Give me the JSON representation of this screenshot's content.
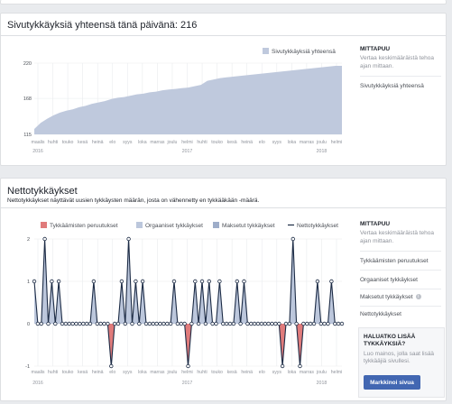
{
  "likes_card": {
    "title": "Sivutykkäyksiä yhteensä tänä päivänä: 216",
    "sidebar": {
      "heading": "MITTAPUU",
      "description": "Vertaa keskimääräistä tehoa ajan mittaan.",
      "metrics": [
        "Sivutykkäyksiä yhteensä"
      ]
    }
  },
  "net_card": {
    "title": "Nettotykkäykset",
    "description": "Nettotykkäykset näyttävät uusien tykkäysten määrän, josta on vähennetty en tykkääkään -määrä.",
    "sidebar": {
      "heading": "MITTAPUU",
      "description": "Vertaa keskimääräistä tehoa ajan mittaan.",
      "metrics": [
        "Tykkäämisten peruutukset",
        "Orgaaniset tykkäykset",
        "Maksetut tykkäykset",
        "Nettotykkäykset"
      ]
    },
    "promo": {
      "title": "HALUATKO LISÄÄ TYKKÄYKSIÄ?",
      "text": "Luo mainos, jolla saat lisää tykkääjiä sivullesi.",
      "button_label": "Markkinoi sivua"
    }
  },
  "colors": {
    "area_fill": "#bfc9dd",
    "unlike": "#e07b7b",
    "organic": "#bcc7dc",
    "paid": "#9eadc9",
    "net_line": "#1c2b45",
    "button": "#4267b2"
  },
  "icons": {
    "info": "info-icon"
  },
  "chart_data": [
    {
      "type": "area",
      "title": "",
      "legend": [
        "Sivutykkäyksiä yhteensä"
      ],
      "legend_position": "top-right",
      "ylim": [
        115,
        220
      ],
      "yticks": [
        115,
        168,
        220
      ],
      "grid": true,
      "x_tick_labels": [
        "maaliskuu",
        "huhtikuu",
        "toukokuu",
        "kesäkuu",
        "heinäkuu",
        "elokuu",
        "syyskuu",
        "lokakuu",
        "marraskuu",
        "joulukuu",
        "helmikuu",
        "huhtikuu",
        "toukokuu",
        "kesäkuu",
        "heinäkuu",
        "elokuu",
        "syyskuu",
        "lokakuu",
        "marraskuu",
        "joulukuu",
        "helmikuu"
      ],
      "x_tick_display": [
        "maalis",
        "huhti",
        "touko",
        "kesä",
        "heinä",
        "elo",
        "syys",
        "loka",
        "marras",
        "joulu",
        "helmi",
        "huhti",
        "touko",
        "kesä",
        "heinä",
        "elo",
        "syys",
        "loka",
        "marras",
        "joulu",
        "helmi"
      ],
      "years": [
        "2016",
        "2017",
        "2018"
      ],
      "series": [
        {
          "name": "Sivutykkäyksiä yhteensä",
          "values": [
            123,
            132,
            138,
            143,
            147,
            150,
            152,
            155,
            157,
            160,
            162,
            164,
            167,
            169,
            170,
            172,
            174,
            175,
            177,
            178,
            180,
            181,
            182,
            183,
            184,
            186,
            188,
            194,
            196,
            198,
            199,
            200,
            201,
            202,
            203,
            204,
            205,
            206,
            207,
            208,
            209,
            210,
            211,
            212,
            213,
            214,
            215,
            216,
            216
          ]
        }
      ]
    },
    {
      "type": "line",
      "title": "",
      "legend": [
        "Tykkäämisten peruutukset",
        "Orgaaniset tykkäykset",
        "Maksetut tykkäykset",
        "Nettotykkäykset"
      ],
      "legend_position": "top",
      "ylim": [
        -1,
        2
      ],
      "yticks": [
        -1,
        0,
        1,
        2
      ],
      "grid": true,
      "x_tick_labels": [
        "maaliskuu",
        "huhtikuu",
        "toukokuu",
        "kesäkuu",
        "heinäkuu",
        "elokuu",
        "syyskuu",
        "lokakuu",
        "marraskuu",
        "joulukuu",
        "helmikuu",
        "huhtikuu",
        "toukokuu",
        "kesäkuu",
        "heinäkuu",
        "elokuu",
        "syyskuu",
        "lokakuu",
        "marraskuu",
        "joulukuu",
        "helmikuu"
      ],
      "x_tick_display": [
        "maalis",
        "huhti",
        "touko",
        "kesä",
        "heinä",
        "elo",
        "syys",
        "loka",
        "marras",
        "joulu",
        "helmi",
        "huhti",
        "touko",
        "kesä",
        "heinä",
        "elo",
        "syys",
        "loka",
        "marras",
        "joulu",
        "helmi"
      ],
      "years": [
        "2016",
        "2017",
        "2018"
      ],
      "series": [
        {
          "name": "Nettotykkäykset",
          "values": [
            1,
            0,
            0,
            2,
            0,
            1,
            0,
            1,
            0,
            0,
            0,
            0,
            0,
            0,
            0,
            0,
            0,
            1,
            0,
            0,
            0,
            0,
            -1,
            0,
            0,
            1,
            0,
            2,
            0,
            1,
            0,
            1,
            0,
            0,
            0,
            0,
            0,
            0,
            0,
            0,
            1,
            0,
            0,
            0,
            -1,
            0,
            1,
            0,
            1,
            0,
            1,
            0,
            0,
            1,
            0,
            0,
            0,
            0,
            1,
            0,
            1,
            0,
            0,
            0,
            0,
            0,
            0,
            0,
            0,
            0,
            0,
            -1,
            0,
            0,
            2,
            0,
            -1,
            0,
            0,
            0,
            0,
            1,
            0,
            0,
            0,
            1,
            0,
            0,
            0
          ]
        }
      ]
    }
  ]
}
